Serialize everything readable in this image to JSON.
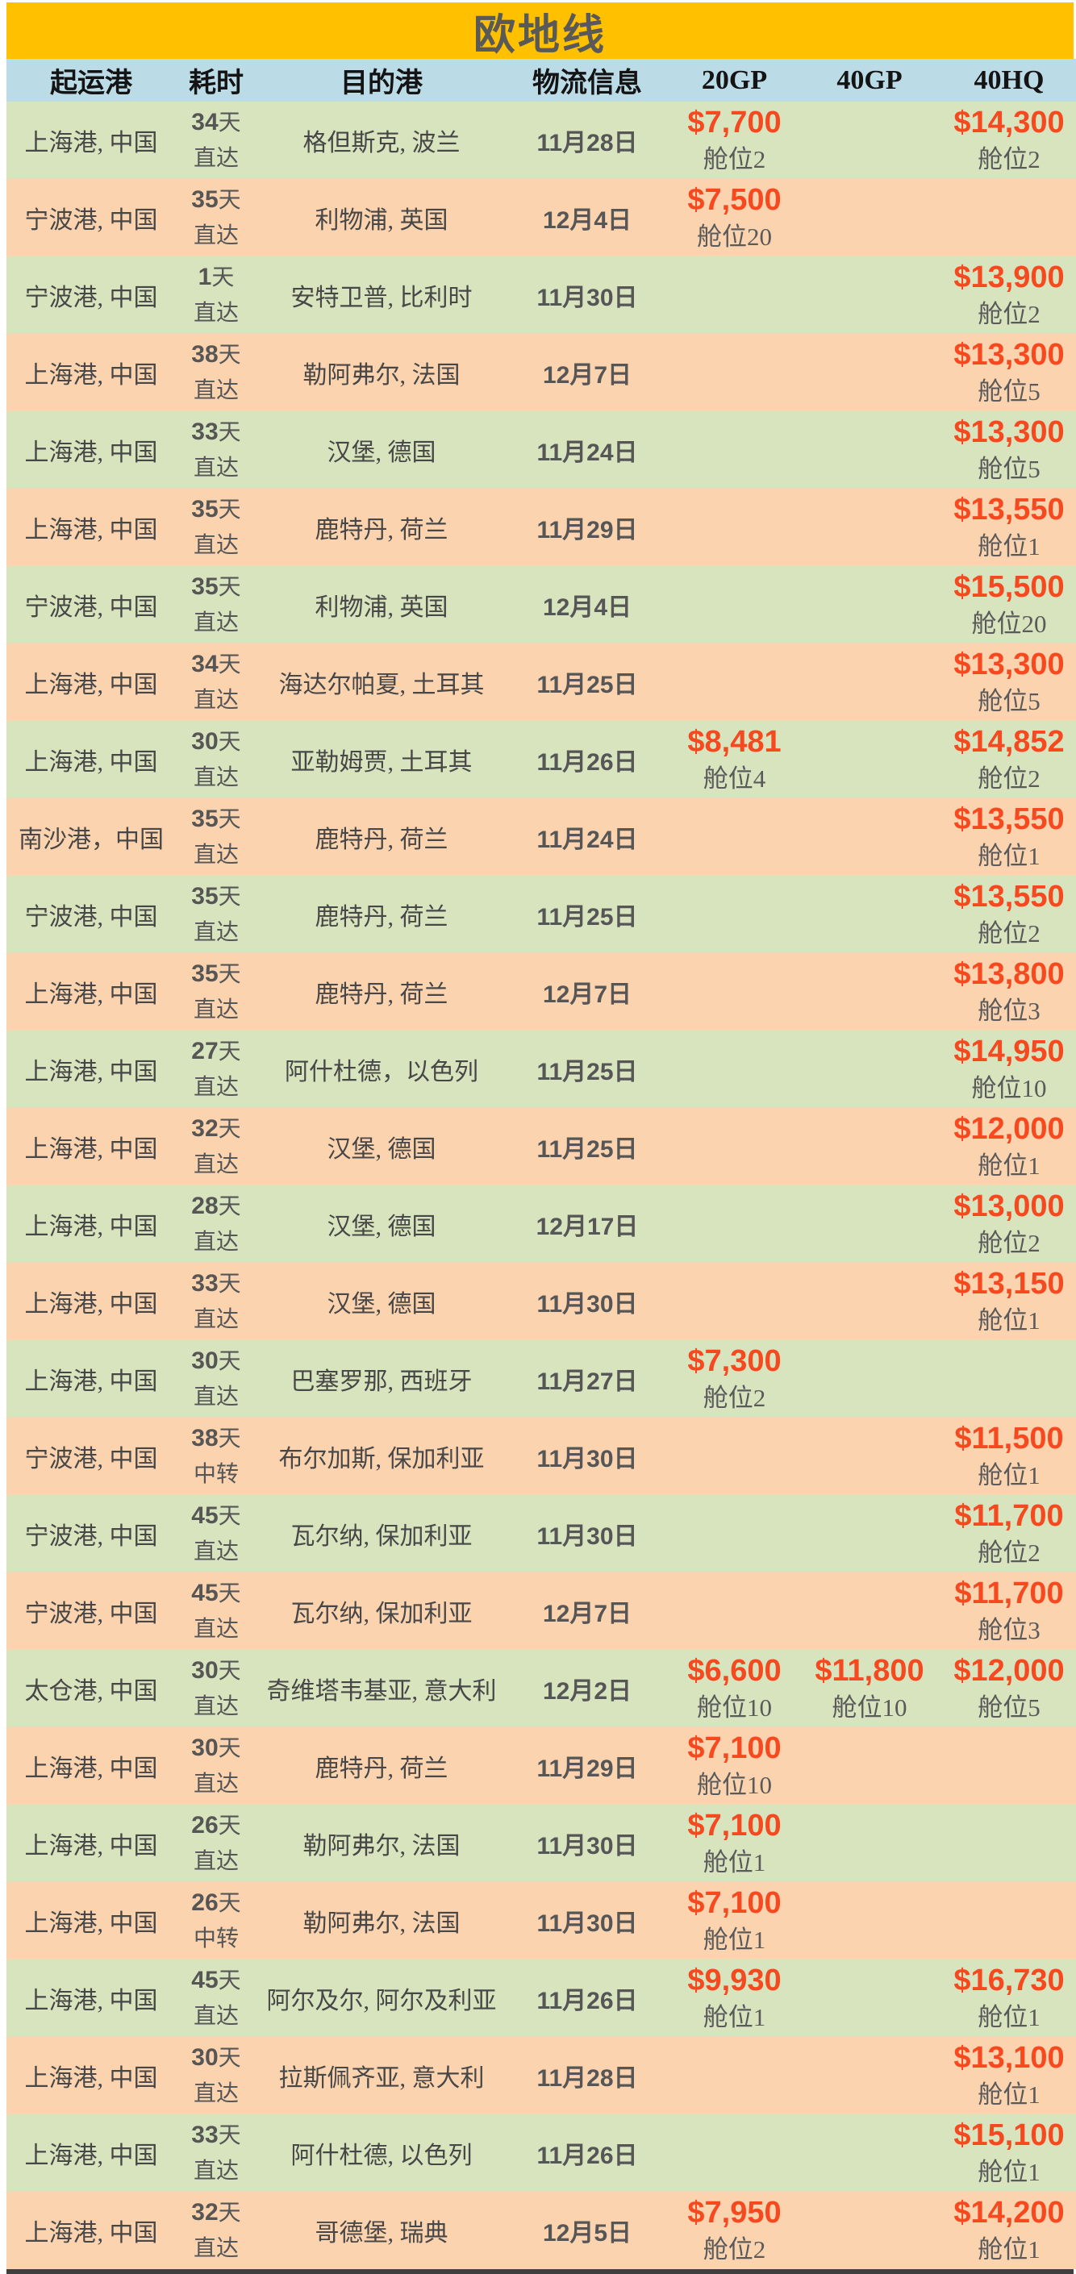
{
  "title": "欧地线",
  "colors": {
    "title_bg": "#FFC000",
    "header_bg": "#BBDBE7",
    "row_green": "#D7E4BE",
    "row_peach": "#FBD3AF",
    "price": "#F7491F"
  },
  "table": {
    "headers": [
      "起运港",
      "耗时",
      "目的港",
      "物流信息",
      "20GP",
      "40GP",
      "40HQ"
    ],
    "rows": [
      {
        "origin": "上海港, 中国",
        "duration": "34天",
        "transit": "直达",
        "destination": "格但斯克, 波兰",
        "date": "11月28日",
        "gp20": {
          "price": "$7,700",
          "slots": "舱位2"
        },
        "gp40": null,
        "hq40": {
          "price": "$14,300",
          "slots": "舱位2"
        }
      },
      {
        "origin": "宁波港, 中国",
        "duration": "35天",
        "transit": "直达",
        "destination": "利物浦, 英国",
        "date": "12月4日",
        "gp20": {
          "price": "$7,500",
          "slots": "舱位20"
        },
        "gp40": null,
        "hq40": null
      },
      {
        "origin": "宁波港, 中国",
        "duration": "1天",
        "transit": "直达",
        "destination": "安特卫普, 比利时",
        "date": "11月30日",
        "gp20": null,
        "gp40": null,
        "hq40": {
          "price": "$13,900",
          "slots": "舱位2"
        }
      },
      {
        "origin": "上海港, 中国",
        "duration": "38天",
        "transit": "直达",
        "destination": "勒阿弗尔, 法国",
        "date": "12月7日",
        "gp20": null,
        "gp40": null,
        "hq40": {
          "price": "$13,300",
          "slots": "舱位5"
        }
      },
      {
        "origin": "上海港, 中国",
        "duration": "33天",
        "transit": "直达",
        "destination": "汉堡, 德国",
        "date": "11月24日",
        "gp20": null,
        "gp40": null,
        "hq40": {
          "price": "$13,300",
          "slots": "舱位5"
        }
      },
      {
        "origin": "上海港, 中国",
        "duration": "35天",
        "transit": "直达",
        "destination": "鹿特丹, 荷兰",
        "date": "11月29日",
        "gp20": null,
        "gp40": null,
        "hq40": {
          "price": "$13,550",
          "slots": "舱位1"
        }
      },
      {
        "origin": "宁波港, 中国",
        "duration": "35天",
        "transit": "直达",
        "destination": "利物浦, 英国",
        "date": "12月4日",
        "gp20": null,
        "gp40": null,
        "hq40": {
          "price": "$15,500",
          "slots": "舱位20"
        }
      },
      {
        "origin": "上海港, 中国",
        "duration": "34天",
        "transit": "直达",
        "destination": "海达尔帕夏, 土耳其",
        "date": "11月25日",
        "gp20": null,
        "gp40": null,
        "hq40": {
          "price": "$13,300",
          "slots": "舱位5"
        }
      },
      {
        "origin": "上海港, 中国",
        "duration": "30天",
        "transit": "直达",
        "destination": "亚勒姆贾, 土耳其",
        "date": "11月26日",
        "gp20": {
          "price": "$8,481",
          "slots": "舱位4"
        },
        "gp40": null,
        "hq40": {
          "price": "$14,852",
          "slots": "舱位2"
        }
      },
      {
        "origin": "南沙港，中国",
        "duration": "35天",
        "transit": "直达",
        "destination": "鹿特丹, 荷兰",
        "date": "11月24日",
        "gp20": null,
        "gp40": null,
        "hq40": {
          "price": "$13,550",
          "slots": "舱位1"
        }
      },
      {
        "origin": "宁波港, 中国",
        "duration": "35天",
        "transit": "直达",
        "destination": "鹿特丹, 荷兰",
        "date": "11月25日",
        "gp20": null,
        "gp40": null,
        "hq40": {
          "price": "$13,550",
          "slots": "舱位2"
        }
      },
      {
        "origin": "上海港, 中国",
        "duration": "35天",
        "transit": "直达",
        "destination": "鹿特丹, 荷兰",
        "date": "12月7日",
        "gp20": null,
        "gp40": null,
        "hq40": {
          "price": "$13,800",
          "slots": "舱位3"
        }
      },
      {
        "origin": "上海港, 中国",
        "duration": "27天",
        "transit": "直达",
        "destination": "阿什杜德，以色列",
        "date": "11月25日",
        "gp20": null,
        "gp40": null,
        "hq40": {
          "price": "$14,950",
          "slots": "舱位10"
        }
      },
      {
        "origin": "上海港, 中国",
        "duration": "32天",
        "transit": "直达",
        "destination": "汉堡, 德国",
        "date": "11月25日",
        "gp20": null,
        "gp40": null,
        "hq40": {
          "price": "$12,000",
          "slots": "舱位1"
        }
      },
      {
        "origin": "上海港, 中国",
        "duration": "28天",
        "transit": "直达",
        "destination": "汉堡, 德国",
        "date": "12月17日",
        "gp20": null,
        "gp40": null,
        "hq40": {
          "price": "$13,000",
          "slots": "舱位2"
        }
      },
      {
        "origin": "上海港, 中国",
        "duration": "33天",
        "transit": "直达",
        "destination": "汉堡, 德国",
        "date": "11月30日",
        "gp20": null,
        "gp40": null,
        "hq40": {
          "price": "$13,150",
          "slots": "舱位1"
        }
      },
      {
        "origin": "上海港, 中国",
        "duration": "30天",
        "transit": "直达",
        "destination": "巴塞罗那, 西班牙",
        "date": "11月27日",
        "gp20": {
          "price": "$7,300",
          "slots": "舱位2"
        },
        "gp40": null,
        "hq40": null
      },
      {
        "origin": "宁波港, 中国",
        "duration": "38天",
        "transit": "中转",
        "destination": "布尔加斯, 保加利亚",
        "date": "11月30日",
        "gp20": null,
        "gp40": null,
        "hq40": {
          "price": "$11,500",
          "slots": "舱位1"
        }
      },
      {
        "origin": "宁波港, 中国",
        "duration": "45天",
        "transit": "直达",
        "destination": "瓦尔纳, 保加利亚",
        "date": "11月30日",
        "gp20": null,
        "gp40": null,
        "hq40": {
          "price": "$11,700",
          "slots": "舱位2"
        }
      },
      {
        "origin": "宁波港, 中国",
        "duration": "45天",
        "transit": "直达",
        "destination": "瓦尔纳, 保加利亚",
        "date": "12月7日",
        "gp20": null,
        "gp40": null,
        "hq40": {
          "price": "$11,700",
          "slots": "舱位3"
        }
      },
      {
        "origin": "太仓港, 中国",
        "duration": "30天",
        "transit": "直达",
        "destination": "奇维塔韦基亚, 意大利",
        "date": "12月2日",
        "gp20": {
          "price": "$6,600",
          "slots": "舱位10"
        },
        "gp40": {
          "price": "$11,800",
          "slots": "舱位10"
        },
        "hq40": {
          "price": "$12,000",
          "slots": "舱位5"
        }
      },
      {
        "origin": "上海港, 中国",
        "duration": "30天",
        "transit": "直达",
        "destination": "鹿特丹, 荷兰",
        "date": "11月29日",
        "gp20": {
          "price": "$7,100",
          "slots": "舱位10"
        },
        "gp40": null,
        "hq40": null
      },
      {
        "origin": "上海港, 中国",
        "duration": "26天",
        "transit": "直达",
        "destination": "勒阿弗尔, 法国",
        "date": "11月30日",
        "gp20": {
          "price": "$7,100",
          "slots": "舱位1"
        },
        "gp40": null,
        "hq40": null
      },
      {
        "origin": "上海港, 中国",
        "duration": "26天",
        "transit": "中转",
        "destination": "勒阿弗尔, 法国",
        "date": "11月30日",
        "gp20": {
          "price": "$7,100",
          "slots": "舱位1"
        },
        "gp40": null,
        "hq40": null
      },
      {
        "origin": "上海港, 中国",
        "duration": "45天",
        "transit": "直达",
        "destination": "阿尔及尔, 阿尔及利亚",
        "date": "11月26日",
        "gp20": {
          "price": "$9,930",
          "slots": "舱位1"
        },
        "gp40": null,
        "hq40": {
          "price": "$16,730",
          "slots": "舱位1"
        }
      },
      {
        "origin": "上海港, 中国",
        "duration": "30天",
        "transit": "直达",
        "destination": "拉斯佩齐亚, 意大利",
        "date": "11月28日",
        "gp20": null,
        "gp40": null,
        "hq40": {
          "price": "$13,100",
          "slots": "舱位1"
        }
      },
      {
        "origin": "上海港, 中国",
        "duration": "33天",
        "transit": "直达",
        "destination": "阿什杜德, 以色列",
        "date": "11月26日",
        "gp20": null,
        "gp40": null,
        "hq40": {
          "price": "$15,100",
          "slots": "舱位1"
        }
      },
      {
        "origin": "上海港, 中国",
        "duration": "32天",
        "transit": "直达",
        "destination": "哥德堡, 瑞典",
        "date": "12月5日",
        "gp20": {
          "price": "$7,950",
          "slots": "舱位2"
        },
        "gp40": null,
        "hq40": {
          "price": "$14,200",
          "slots": "舱位1"
        }
      }
    ]
  }
}
